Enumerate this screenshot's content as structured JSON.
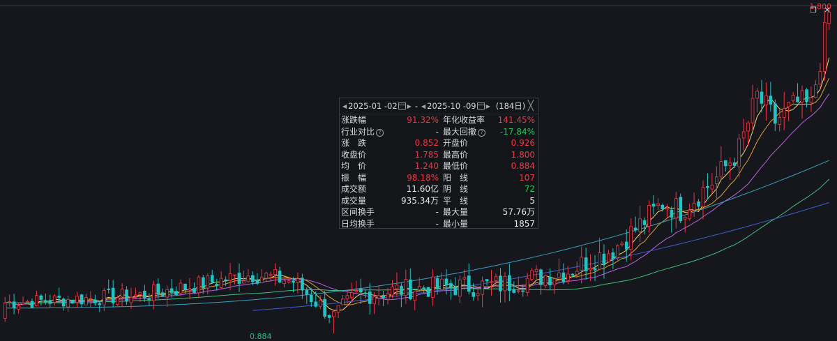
{
  "header": {
    "max_price_label": "1.800",
    "min_price_label": "0.884"
  },
  "panel": {
    "start_date": "2025-01 -02",
    "dash": "-",
    "end_date": "2025-10 -09",
    "days": "(184日)",
    "rows": [
      {
        "l1": "涨跌幅",
        "v1": "91.32%",
        "c1": "red",
        "l2": "年化收益率",
        "v2": "141.45%",
        "c2": "red"
      },
      {
        "l1": "行业对比",
        "v1": "-",
        "c1": "white",
        "l2": "最大回撤",
        "v2": "-17.84%",
        "c2": "green"
      },
      {
        "l1": "涨　跌",
        "v1": "0.852",
        "c1": "red",
        "l2": "开盘价",
        "v2": "0.926",
        "c2": "red"
      },
      {
        "l1": "收盘价",
        "v1": "1.785",
        "c1": "red",
        "l2": "最高价",
        "v2": "1.800",
        "c2": "red"
      },
      {
        "l1": "均　价",
        "v1": "1.240",
        "c1": "red",
        "l2": "最低价",
        "v2": "0.884",
        "c2": "red"
      },
      {
        "l1": "振　幅",
        "v1": "98.18%",
        "c1": "red",
        "l2": "阳　线",
        "v2": "107",
        "c2": "red"
      },
      {
        "l1": "成交额",
        "v1": "11.60亿",
        "c1": "white",
        "l2": "阴　线",
        "v2": "72",
        "c2": "green"
      },
      {
        "l1": "成交量",
        "v1": "935.34万",
        "c1": "white",
        "l2": "平　线",
        "v2": "5",
        "c2": "white"
      },
      {
        "l1": "区间换手",
        "v1": "-",
        "c1": "white",
        "l2": "最大量",
        "v2": "57.76万",
        "c2": "white"
      },
      {
        "l1": "日均换手",
        "v1": "-",
        "c1": "white",
        "l2": "最小量",
        "v2": "1857",
        "c2": "white"
      }
    ]
  },
  "colors": {
    "up": "#f23645",
    "down": "#22c3c3",
    "ma5": "#f5d76e",
    "ma10": "#e0a030",
    "ma20": "#c060e0",
    "ma60": "#3fbf7f",
    "ma120": "#3aa0c0",
    "ma250": "#4060d0"
  },
  "chart_data": {
    "type": "candlestick",
    "ylim": [
      0.884,
      1.8
    ],
    "trend_control_points": [
      [
        0,
        0.97
      ],
      [
        30,
        0.99
      ],
      [
        55,
        1.05
      ],
      [
        64,
        1.03
      ],
      [
        73,
        0.93
      ],
      [
        78,
        0.99
      ],
      [
        90,
        1.01
      ],
      [
        110,
        1.02
      ],
      [
        125,
        1.06
      ],
      [
        135,
        1.12
      ],
      [
        142,
        1.2
      ],
      [
        146,
        1.25
      ],
      [
        150,
        1.23
      ],
      [
        158,
        1.32
      ],
      [
        163,
        1.4
      ],
      [
        167,
        1.55
      ],
      [
        171,
        1.48
      ],
      [
        176,
        1.53
      ],
      [
        179,
        1.52
      ],
      [
        183,
        1.785
      ]
    ],
    "count": 184
  }
}
